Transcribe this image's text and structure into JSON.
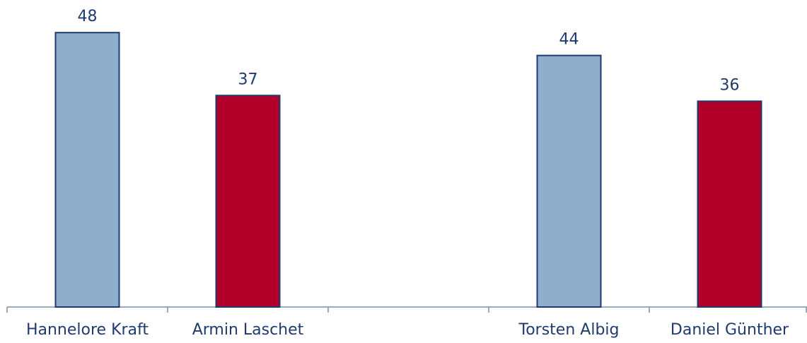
{
  "chart_data": {
    "type": "bar",
    "categories": [
      "Hannelore Kraft",
      "Armin Laschet",
      null,
      "Torsten Albig",
      "Daniel Günther"
    ],
    "values": [
      48,
      37,
      null,
      44,
      36
    ],
    "colors": [
      "#8eaecb",
      "#b0002a",
      null,
      "#8eaecb",
      "#b0002a"
    ]
  }
}
